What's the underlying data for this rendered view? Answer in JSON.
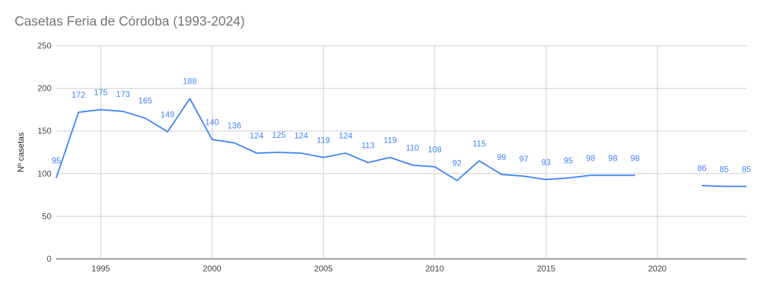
{
  "chart_data": {
    "type": "line",
    "title": "Casetas Feria de Córdoba (1993-2024)",
    "xlabel": "",
    "ylabel": "Nº casetas",
    "xlim": [
      1993,
      2024
    ],
    "ylim": [
      0,
      250
    ],
    "x_ticks": [
      1995,
      2000,
      2005,
      2010,
      2015,
      2020
    ],
    "y_ticks": [
      0,
      50,
      100,
      150,
      200,
      250
    ],
    "grid": true,
    "line_color": "#4285f4",
    "points": [
      {
        "x": 1993,
        "y": 95
      },
      {
        "x": 1994,
        "y": 172
      },
      {
        "x": 1995,
        "y": 175
      },
      {
        "x": 1996,
        "y": 173
      },
      {
        "x": 1997,
        "y": 165
      },
      {
        "x": 1998,
        "y": 149
      },
      {
        "x": 1999,
        "y": 188
      },
      {
        "x": 2000,
        "y": 140
      },
      {
        "x": 2001,
        "y": 136
      },
      {
        "x": 2002,
        "y": 124
      },
      {
        "x": 2003,
        "y": 125
      },
      {
        "x": 2004,
        "y": 124
      },
      {
        "x": 2005,
        "y": 119
      },
      {
        "x": 2006,
        "y": 124
      },
      {
        "x": 2007,
        "y": 113
      },
      {
        "x": 2008,
        "y": 119
      },
      {
        "x": 2009,
        "y": 110
      },
      {
        "x": 2010,
        "y": 108
      },
      {
        "x": 2011,
        "y": 92
      },
      {
        "x": 2012,
        "y": 115
      },
      {
        "x": 2013,
        "y": 99
      },
      {
        "x": 2014,
        "y": 97
      },
      {
        "x": 2015,
        "y": 93
      },
      {
        "x": 2016,
        "y": 95
      },
      {
        "x": 2017,
        "y": 98
      },
      {
        "x": 2018,
        "y": 98
      },
      {
        "x": 2019,
        "y": 98
      },
      {
        "x": 2020,
        "y": null
      },
      {
        "x": 2021,
        "y": null
      },
      {
        "x": 2022,
        "y": 86
      },
      {
        "x": 2023,
        "y": 85
      },
      {
        "x": 2024,
        "y": 85
      }
    ]
  }
}
